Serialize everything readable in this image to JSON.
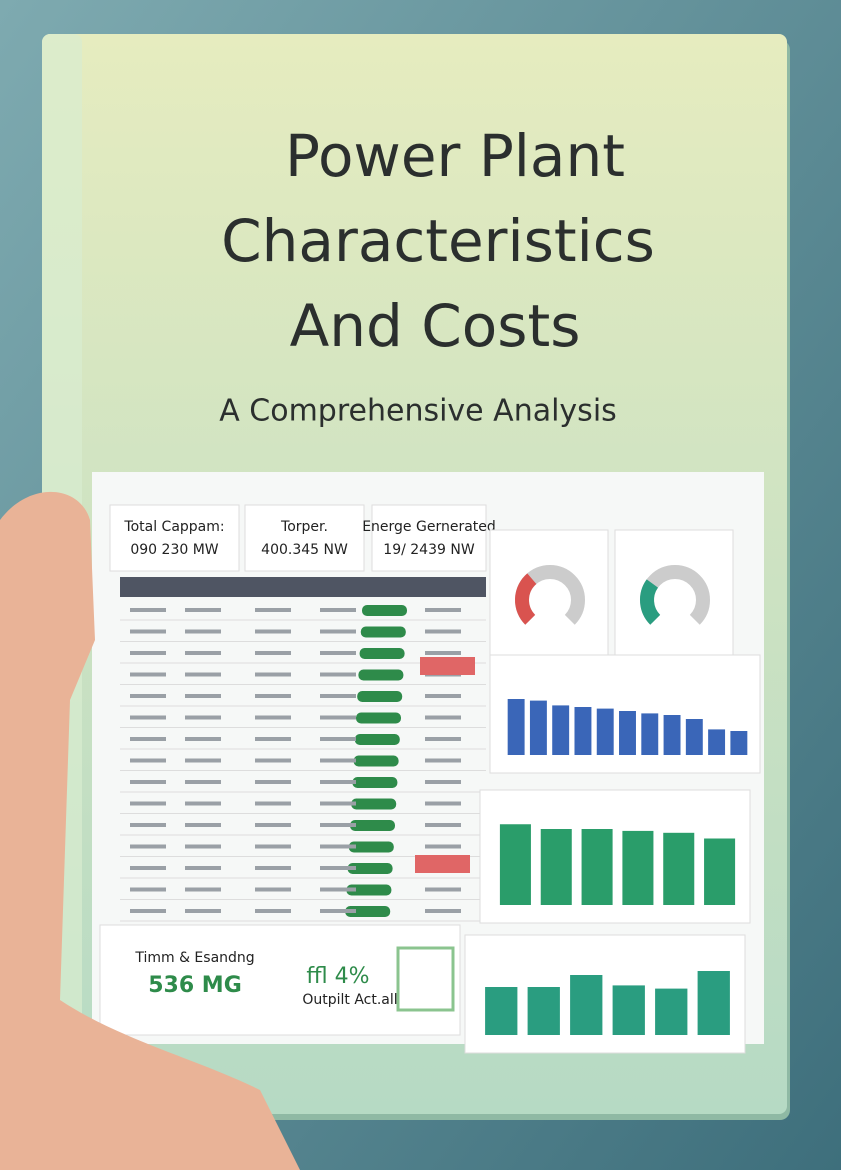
{
  "cover": {
    "title_lines": [
      "Power Plant",
      "Characteristics",
      "And Costs"
    ],
    "subtitle": "A Comprehensive Analysis"
  },
  "dashboard": {
    "kpis": [
      {
        "label": "Total Cappam:",
        "value": "090 230 MW"
      },
      {
        "label": "Torper.",
        "value": "400.345 NW"
      },
      {
        "label": "Energe Gernerated",
        "value": "19/ 2439 NW"
      }
    ],
    "footer_kpis": [
      {
        "label": "Timm & Esandng",
        "value": "536 MG"
      },
      {
        "value": "ffl 4%",
        "label": "Outpilt Act.all"
      }
    ],
    "gauges": [
      {
        "value": 35,
        "color": "#d9534f"
      },
      {
        "value": 30,
        "color": "#2a9d80"
      }
    ],
    "bar_panels": [
      {
        "color": "#3a66b8",
        "values": [
          70,
          68,
          62,
          60,
          58,
          55,
          52,
          50,
          45,
          32,
          30
        ]
      },
      {
        "color": "#2a9d6a",
        "values": [
          85,
          80,
          80,
          78,
          76,
          70
        ]
      },
      {
        "color": "#2a9d80",
        "values": [
          60,
          60,
          75,
          62,
          58,
          80
        ]
      }
    ]
  }
}
